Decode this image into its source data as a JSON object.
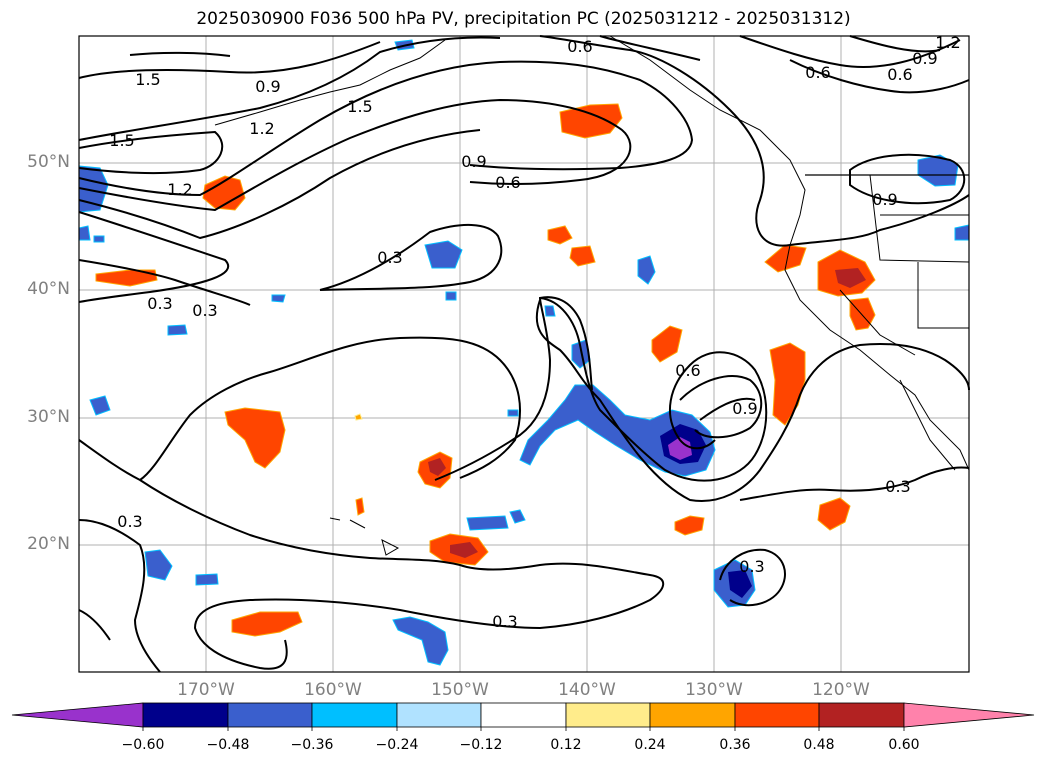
{
  "title": "2025030900 F036 500 hPa PV, precipitation PC (2025031212 - 2025031312)",
  "map": {
    "lon_range": [
      180,
      110
    ],
    "lat_range": [
      10,
      60
    ],
    "lat_ticks": [
      "50°N",
      "40°N",
      "30°N",
      "20°N"
    ],
    "lon_ticks": [
      "170°W",
      "160°W",
      "150°W",
      "140°W",
      "130°W",
      "120°W"
    ],
    "gridlines": true,
    "contour_labels": [
      "1.5",
      "0.9",
      "1.2",
      "1.5",
      "1.5",
      "1.2",
      "0.6",
      "0.6",
      "1.2",
      "0.6",
      "0.9",
      "0.6",
      "0.9",
      "0.9",
      "0.3",
      "0.3",
      "0.3",
      "0.6",
      "0.9",
      "0.3",
      "0.3",
      "0.3",
      "0.3"
    ]
  },
  "colorbar": {
    "tick_labels": [
      "−0.60",
      "−0.48",
      "−0.36",
      "−0.24",
      "−0.12",
      "0.12",
      "0.24",
      "0.36",
      "0.48",
      "0.60"
    ],
    "colors": [
      "#9932cc",
      "#00008b",
      "#3a5fcd",
      "#00bfff",
      "#b0e2ff",
      "#ffffff",
      "#ffec8b",
      "#ffa500",
      "#ff4500",
      "#b22222",
      "#ff82ab"
    ]
  }
}
